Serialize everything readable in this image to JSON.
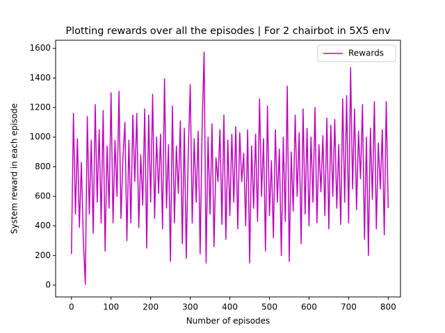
{
  "chart_data": {
    "type": "line",
    "title": "Plotting rewards over all the episodes | For 2 chairbot in 5X5 env",
    "xlabel": "Number of episodes",
    "ylabel": "System reward in each episode",
    "x": [
      0,
      5,
      10,
      15,
      20,
      25,
      30,
      35,
      40,
      45,
      50,
      55,
      60,
      65,
      70,
      75,
      80,
      85,
      90,
      95,
      100,
      105,
      110,
      115,
      120,
      125,
      130,
      135,
      140,
      145,
      150,
      155,
      160,
      165,
      170,
      175,
      180,
      185,
      190,
      195,
      200,
      205,
      210,
      215,
      220,
      225,
      230,
      235,
      240,
      245,
      250,
      255,
      260,
      265,
      270,
      275,
      280,
      285,
      290,
      295,
      300,
      305,
      310,
      315,
      320,
      325,
      330,
      335,
      340,
      345,
      350,
      355,
      360,
      365,
      370,
      375,
      380,
      385,
      390,
      395,
      400,
      405,
      410,
      415,
      420,
      425,
      430,
      435,
      440,
      445,
      450,
      455,
      460,
      465,
      470,
      475,
      480,
      485,
      490,
      495,
      500,
      505,
      510,
      515,
      520,
      525,
      530,
      535,
      540,
      545,
      550,
      555,
      560,
      565,
      570,
      575,
      580,
      585,
      590,
      595,
      600,
      605,
      610,
      615,
      620,
      625,
      630,
      635,
      640,
      645,
      650,
      655,
      660,
      665,
      670,
      675,
      680,
      685,
      690,
      695,
      700,
      705,
      710,
      715,
      720,
      725,
      730,
      735,
      740,
      745,
      750,
      755,
      760,
      765,
      770,
      775,
      780,
      785,
      790,
      795,
      800
    ],
    "series": [
      {
        "name": "Rewards",
        "color": "#bf00bf",
        "values": [
          210,
          1160,
          480,
          990,
          390,
          830,
          300,
          5,
          1140,
          480,
          980,
          350,
          1220,
          560,
          1050,
          420,
          1180,
          230,
          940,
          520,
          1300,
          420,
          980,
          600,
          1310,
          450,
          860,
          1100,
          300,
          980,
          420,
          1150,
          700,
          1160,
          390,
          880,
          540,
          1190,
          250,
          1150,
          560,
          1290,
          450,
          1000,
          620,
          1020,
          380,
          1395,
          520,
          950,
          160,
          1210,
          420,
          940,
          620,
          1110,
          280,
          1060,
          180,
          900,
          1355,
          420,
          990,
          560,
          1040,
          210,
          1065,
          1575,
          150,
          1000,
          480,
          1090,
          260,
          860,
          700,
          1050,
          410,
          1150,
          310,
          980,
          470,
          1020,
          560,
          1070,
          380,
          1030,
          700,
          890,
          400,
          1050,
          150,
          940,
          520,
          1020,
          430,
          1260,
          600,
          990,
          230,
          1210,
          470,
          840,
          320,
          1050,
          560,
          920,
          200,
          1000,
          430,
          1345,
          160,
          900,
          500,
          1150,
          600,
          1030,
          280,
          1190,
          480,
          1060,
          400,
          1000,
          560,
          1200,
          420,
          950,
          630,
          1010,
          470,
          1130,
          380,
          1080,
          600,
          1120,
          520,
          950,
          410,
          1260,
          560,
          1280,
          420,
          1470,
          650,
          1190,
          510,
          1040,
          720,
          1220,
          310,
          1000,
          200,
          1060,
          580,
          1240,
          380,
          960,
          650,
          1050,
          340,
          1240,
          520
        ]
      }
    ],
    "xlim": [
      -40,
      831
    ],
    "ylim": [
      -80,
      1655
    ],
    "xticks": [
      0,
      100,
      200,
      300,
      400,
      500,
      600,
      700,
      800
    ],
    "yticks": [
      0,
      200,
      400,
      600,
      800,
      1000,
      1200,
      1400,
      1600
    ],
    "legend": "upper right"
  }
}
